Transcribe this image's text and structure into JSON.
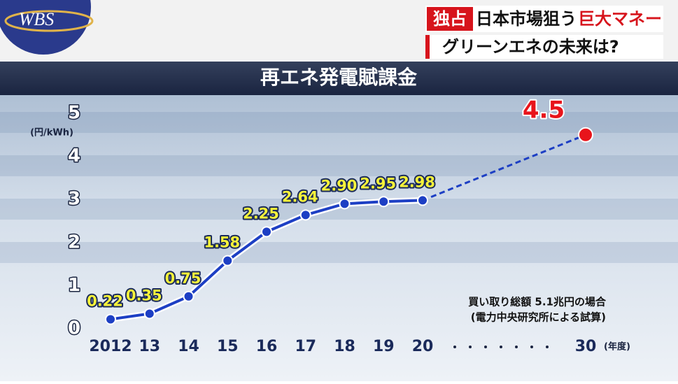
{
  "header": {
    "logo": "WBS",
    "tag": "独占",
    "headline_1": "日本市場狙う",
    "headline_2": "巨大マネー",
    "subheadline": "グリーンエネの未来は?"
  },
  "chart_data": {
    "type": "line",
    "title": "再エネ発電賦課金",
    "y_unit": "(円/kWh)",
    "x_unit": "(年度)",
    "categories": [
      "2012",
      "13",
      "14",
      "15",
      "16",
      "17",
      "18",
      "19",
      "20",
      "30"
    ],
    "values": [
      0.22,
      0.35,
      0.75,
      1.58,
      2.25,
      2.64,
      2.9,
      2.95,
      2.98,
      4.5
    ],
    "value_labels": [
      "0.22",
      "0.35",
      "0.75",
      "1.58",
      "2.25",
      "2.64",
      "2.90",
      "2.95",
      "2.98",
      "4.5"
    ],
    "color": "#1d3fc4",
    "projection_color": "#e8141b",
    "ylim": [
      0,
      5
    ],
    "yticks": [
      0,
      1,
      2,
      3,
      4,
      5
    ],
    "annotations": [
      "買い取り総額 5.1兆円の場合",
      "(電力中央研究所による試算)"
    ]
  }
}
